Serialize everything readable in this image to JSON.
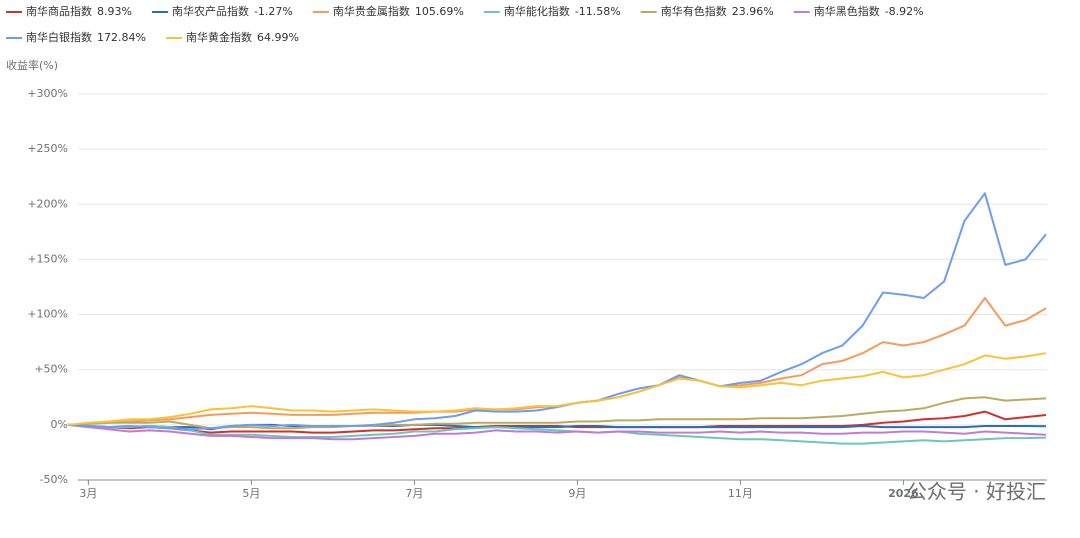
{
  "chart_data": {
    "type": "line",
    "y_axis_title": "收益率(%)",
    "watermark": "公众号 · 好投汇",
    "up_color": "#e02020",
    "down_color": "#1a9a1a",
    "categories": [
      null,
      "3月",
      null,
      null,
      null,
      null,
      null,
      null,
      null,
      "5月",
      null,
      null,
      null,
      null,
      null,
      null,
      null,
      "7月",
      null,
      null,
      null,
      null,
      null,
      null,
      null,
      "9月",
      null,
      null,
      null,
      null,
      null,
      null,
      null,
      "11月",
      null,
      null,
      null,
      null,
      null,
      null,
      null,
      "2026",
      null,
      null,
      null,
      null,
      null,
      null,
      null
    ],
    "ylim": [
      -50,
      300
    ],
    "yticks": [
      {
        "value": -50,
        "label": "-50%"
      },
      {
        "value": 0,
        "label": "0%"
      },
      {
        "value": 50,
        "label": "+50%"
      },
      {
        "value": 100,
        "label": "+100%"
      },
      {
        "value": 150,
        "label": "+150%"
      },
      {
        "value": 200,
        "label": "+200%"
      },
      {
        "value": 250,
        "label": "+250%"
      },
      {
        "value": 300,
        "label": "+300%"
      }
    ],
    "grid": true,
    "series": [
      {
        "name": "南华商品指数",
        "color": "#d0302f",
        "end": {
          "value": 8.93,
          "label": "8.93%"
        },
        "values": [
          0,
          -1,
          -2,
          -3,
          -2,
          -3,
          -5,
          -7,
          -6,
          -6,
          -6,
          -6,
          -7,
          -7,
          -6,
          -5,
          -5,
          -4,
          -3,
          -3,
          -2,
          -1,
          -1,
          -1,
          -1,
          -2,
          -2,
          -2,
          -2,
          -2,
          -2,
          -2,
          -1,
          -1,
          -1,
          -1,
          -1,
          -1,
          -1,
          0,
          2,
          3,
          5,
          6,
          8,
          12,
          5,
          7,
          8.93
        ]
      },
      {
        "name": "南华农产品指数",
        "color": "#2a6db8",
        "end": {
          "value": -1.27,
          "label": "-1.27%"
        },
        "values": [
          0,
          -1,
          -2,
          -2,
          -1,
          -2,
          -2,
          -4,
          -1,
          0,
          0,
          -1,
          -1,
          -1,
          -1,
          -1,
          -1,
          0,
          0,
          -1,
          -2,
          -2,
          -2,
          -2,
          -2,
          -1,
          -1,
          -2,
          -2,
          -2,
          -2,
          -2,
          -2,
          -2,
          -2,
          -2,
          -2,
          -2,
          -2,
          -1,
          -2,
          -2,
          -2,
          -2,
          -2,
          -1,
          -1,
          -1,
          -1.27
        ]
      },
      {
        "name": "南华贵金属指数",
        "color": "#f79a5b",
        "end": {
          "value": 105.69,
          "label": "105.69%"
        },
        "values": [
          0,
          1,
          2,
          3,
          4,
          5,
          7,
          9,
          10,
          11,
          10,
          9,
          9,
          9,
          10,
          11,
          11,
          11,
          12,
          12,
          14,
          14,
          14,
          16,
          17,
          20,
          22,
          25,
          30,
          36,
          43,
          40,
          35,
          36,
          38,
          42,
          45,
          55,
          58,
          65,
          75,
          72,
          75,
          82,
          90,
          115,
          90,
          95,
          105.69
        ]
      },
      {
        "name": "南华能化指数",
        "color": "#6ec6b8",
        "end": {
          "value": -11.58,
          "label": "-11.58%"
        },
        "values": [
          0,
          -1,
          -2,
          -2,
          -1,
          -2,
          -5,
          -9,
          -9,
          -9,
          -10,
          -11,
          -11,
          -11,
          -10,
          -9,
          -8,
          -6,
          -6,
          -4,
          -3,
          -2,
          -3,
          -4,
          -5,
          -6,
          -7,
          -6,
          -8,
          -9,
          -10,
          -11,
          -12,
          -13,
          -13,
          -14,
          -15,
          -16,
          -17,
          -17,
          -16,
          -15,
          -14,
          -15,
          -14,
          -13,
          -12,
          -12,
          -11.58
        ]
      },
      {
        "name": "南华有色指数",
        "color": "#b9ab5f",
        "end": {
          "value": 23.96,
          "label": "23.96%"
        },
        "values": [
          0,
          1,
          2,
          2,
          2,
          3,
          0,
          -3,
          -2,
          -2,
          -3,
          -3,
          -2,
          -2,
          -1,
          -1,
          0,
          0,
          1,
          1,
          2,
          2,
          2,
          2,
          2,
          3,
          3,
          4,
          4,
          5,
          5,
          5,
          5,
          5,
          6,
          6,
          6,
          7,
          8,
          10,
          12,
          13,
          15,
          20,
          24,
          25,
          22,
          23,
          23.96
        ]
      },
      {
        "name": "南华黑色指数",
        "color": "#c17bd6",
        "end": {
          "value": -8.92,
          "label": "-8.92%"
        },
        "values": [
          0,
          -2,
          -4,
          -6,
          -5,
          -6,
          -8,
          -10,
          -10,
          -11,
          -12,
          -12,
          -12,
          -13,
          -13,
          -12,
          -11,
          -10,
          -8,
          -8,
          -7,
          -5,
          -6,
          -6,
          -7,
          -6,
          -7,
          -6,
          -6,
          -7,
          -7,
          -7,
          -6,
          -7,
          -6,
          -7,
          -7,
          -8,
          -8,
          -7,
          -7,
          -6,
          -6,
          -7,
          -8,
          -6,
          -7,
          -8,
          -8.92
        ]
      },
      {
        "name": "南华白银指数",
        "color": "#6d9cf0",
        "end": {
          "value": 172.84,
          "label": "172.84%"
        },
        "values": [
          0,
          -1,
          -2,
          -1,
          -2,
          -3,
          -4,
          -3,
          -1,
          0,
          -1,
          0,
          -1,
          -1,
          -1,
          0,
          2,
          5,
          6,
          8,
          13,
          12,
          12,
          13,
          16,
          20,
          22,
          28,
          33,
          36,
          45,
          40,
          35,
          38,
          40,
          48,
          55,
          65,
          72,
          90,
          120,
          118,
          115,
          130,
          185,
          210,
          145,
          150,
          172.84
        ]
      },
      {
        "name": "南华黄金指数",
        "color": "#f8c23b",
        "end": {
          "value": 64.99,
          "label": "64.99%"
        },
        "values": [
          0,
          2,
          3,
          5,
          5,
          7,
          10,
          14,
          15,
          17,
          15,
          13,
          13,
          12,
          13,
          14,
          13,
          12,
          12,
          13,
          15,
          14,
          15,
          17,
          17,
          20,
          22,
          25,
          30,
          36,
          42,
          40,
          35,
          34,
          36,
          38,
          36,
          40,
          42,
          44,
          48,
          43,
          45,
          50,
          55,
          63,
          60,
          62,
          64.99
        ]
      }
    ]
  }
}
